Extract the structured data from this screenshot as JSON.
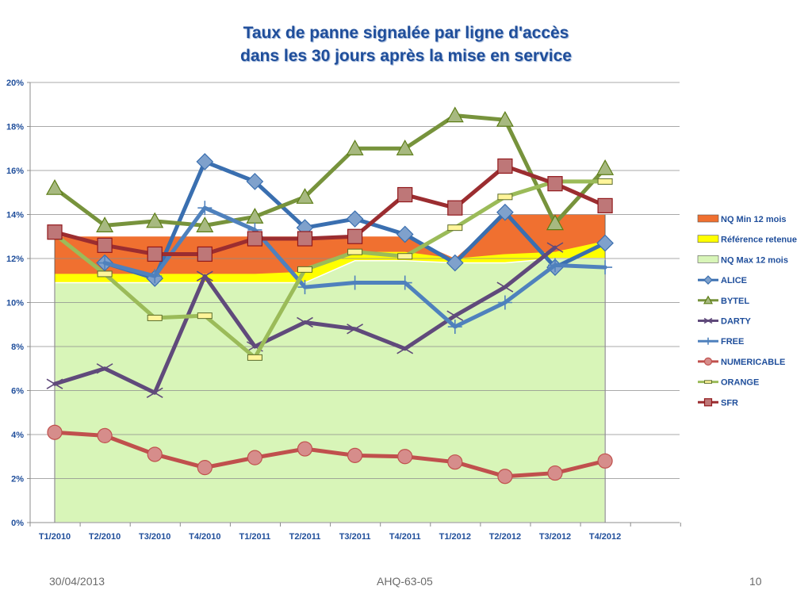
{
  "footer": {
    "date": "30/04/2013",
    "reference": "AHQ-63-05",
    "page": "10"
  },
  "chart_data": {
    "type": "line",
    "title_lines": [
      "Taux de panne signalée par ligne d'accès",
      "dans les 30 jours après la mise en service"
    ],
    "categories": [
      "T1/2010",
      "T2/2010",
      "T3/2010",
      "T4/2010",
      "T1/2011",
      "T2/2011",
      "T3/2011",
      "T4/2011",
      "T1/2012",
      "T2/2012",
      "T3/2012",
      "T4/2012"
    ],
    "ylim": [
      0,
      20
    ],
    "yticks": [
      "0%",
      "2%",
      "4%",
      "6%",
      "8%",
      "10%",
      "12%",
      "14%",
      "16%",
      "18%",
      "20%"
    ],
    "grid": true,
    "legend_position": "right",
    "bands": [
      {
        "name": "NQ Min 12 mois",
        "color": "#f07030",
        "values": [
          13.0,
          13.0,
          13.0,
          13.0,
          13.0,
          13.0,
          13.0,
          13.0,
          12.0,
          14.0,
          14.0,
          14.0
        ]
      },
      {
        "name": "Référence retenue",
        "color": "#ffff00",
        "values": [
          11.3,
          11.3,
          11.3,
          11.3,
          11.3,
          11.4,
          12.3,
          12.3,
          12.0,
          12.2,
          12.3,
          12.8
        ]
      },
      {
        "name": "NQ Max 12 mois",
        "color": "#d8f5b8",
        "values": [
          10.9,
          10.9,
          10.9,
          10.9,
          10.9,
          10.9,
          11.9,
          11.9,
          11.8,
          11.8,
          12.0,
          12.0
        ]
      }
    ],
    "series": [
      {
        "name": "ALICE",
        "color": "#3a6fb0",
        "marker": "diamond",
        "values": [
          null,
          11.8,
          11.1,
          16.4,
          15.5,
          13.4,
          13.8,
          13.1,
          11.8,
          14.1,
          11.6,
          12.7
        ]
      },
      {
        "name": "BYTEL",
        "color": "#77933c",
        "marker": "triangle",
        "values": [
          15.2,
          13.5,
          13.7,
          13.5,
          13.9,
          14.8,
          17.0,
          17.0,
          18.5,
          18.3,
          13.6,
          16.1
        ]
      },
      {
        "name": "DARTY",
        "color": "#604a7b",
        "marker": "x",
        "values": [
          6.3,
          7.0,
          5.9,
          11.2,
          8.0,
          9.1,
          8.8,
          7.9,
          9.4,
          10.7,
          12.5,
          null
        ]
      },
      {
        "name": "FREE",
        "color": "#4f81bd",
        "marker": "plus",
        "values": [
          null,
          11.8,
          11.2,
          14.3,
          13.3,
          10.7,
          10.9,
          10.9,
          8.9,
          10.0,
          11.7,
          11.6
        ]
      },
      {
        "name": "NUMERICABLE",
        "color": "#c0504d",
        "marker": "circle",
        "values": [
          4.1,
          3.95,
          3.1,
          2.5,
          2.95,
          3.35,
          3.05,
          3.0,
          2.75,
          2.1,
          2.25,
          2.8
        ]
      },
      {
        "name": "ORANGE",
        "color": "#9bbb59",
        "marker": "dash",
        "values": [
          13.1,
          11.3,
          9.3,
          9.4,
          7.5,
          11.5,
          12.3,
          12.1,
          13.4,
          14.8,
          15.5,
          15.5
        ]
      },
      {
        "name": "SFR",
        "color": "#9b2d30",
        "marker": "square",
        "values": [
          13.2,
          12.6,
          12.2,
          12.2,
          12.9,
          12.9,
          13.0,
          14.9,
          14.3,
          16.2,
          15.4,
          14.4
        ]
      }
    ]
  }
}
